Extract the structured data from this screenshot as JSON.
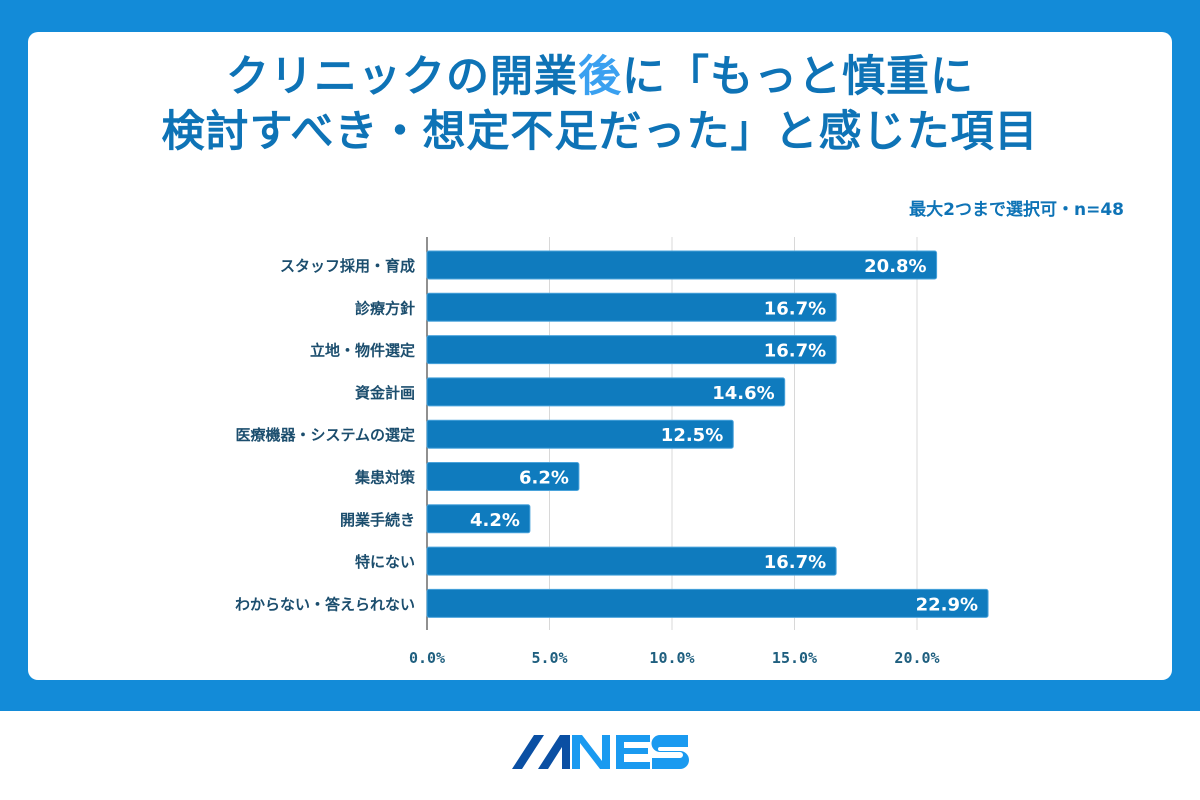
{
  "title_parts": [
    "クリニックの開業",
    "後",
    "に「もっと慎重に",
    "検討すべき・想定不足だった」と感じた項目"
  ],
  "subtitle": "最大2つまで選択可・n=48",
  "colors": {
    "background": "#138BD8",
    "bar": "#0F7BBE",
    "title": "#0E73B6",
    "title_highlight": "#3AA0F0"
  },
  "chart_data": {
    "type": "bar",
    "orientation": "horizontal",
    "categories": [
      "スタッフ採用・育成",
      "診療方針",
      "立地・物件選定",
      "資金計画",
      "医療機器・システムの選定",
      "集患対策",
      "開業手続き",
      "特にない",
      "わからない・答えられない"
    ],
    "values": [
      20.8,
      16.7,
      16.7,
      14.6,
      12.5,
      6.2,
      4.2,
      16.7,
      22.9
    ],
    "value_labels": [
      "20.8%",
      "16.7%",
      "16.7%",
      "14.6%",
      "12.5%",
      "6.2%",
      "4.2%",
      "16.7%",
      "22.9%"
    ],
    "xticks": [
      "0.0%",
      "5.0%",
      "10.0%",
      "15.0%",
      "20.0%"
    ],
    "xtick_values": [
      0,
      5,
      10,
      15,
      20
    ],
    "xlim": [
      0,
      23
    ],
    "grid": true
  },
  "logo": "MNES"
}
